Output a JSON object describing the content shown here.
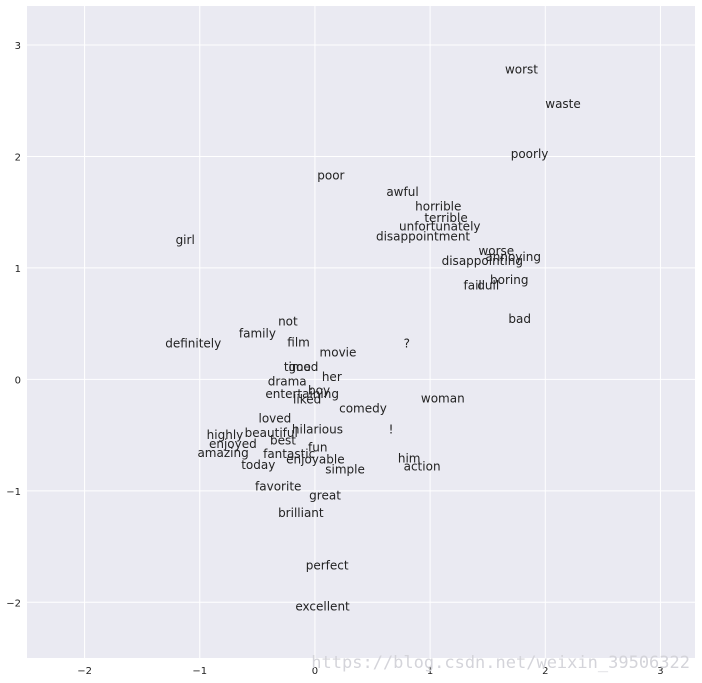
{
  "chart_data": {
    "type": "scatter",
    "title": "",
    "xlabel": "",
    "ylabel": "",
    "xlim": [
      -2.5,
      3.3
    ],
    "ylim": [
      -2.5,
      3.35
    ],
    "grid": true,
    "xticks": [
      "−2",
      "−1",
      "0",
      "1",
      "2",
      "3"
    ],
    "xtick_values": [
      -2,
      -1,
      0,
      1,
      2,
      3
    ],
    "yticks": [
      "−2",
      "−1",
      "0",
      "1",
      "2",
      "3"
    ],
    "ytick_values": [
      -2,
      -1,
      0,
      1,
      2,
      3
    ],
    "points": [
      {
        "label": "worst",
        "x": 1.65,
        "y": 2.78
      },
      {
        "label": "waste",
        "x": 2.0,
        "y": 2.47
      },
      {
        "label": "poorly",
        "x": 1.7,
        "y": 2.02
      },
      {
        "label": "poor",
        "x": 0.02,
        "y": 1.83
      },
      {
        "label": "awful",
        "x": 0.62,
        "y": 1.68
      },
      {
        "label": "horrible",
        "x": 0.87,
        "y": 1.55
      },
      {
        "label": "terrible",
        "x": 0.95,
        "y": 1.45
      },
      {
        "label": "unfortunately",
        "x": 0.73,
        "y": 1.37
      },
      {
        "label": "disappointment",
        "x": 0.53,
        "y": 1.28
      },
      {
        "label": "girl",
        "x": -1.21,
        "y": 1.25
      },
      {
        "label": "worse",
        "x": 1.42,
        "y": 1.15
      },
      {
        "label": "annoying",
        "x": 1.48,
        "y": 1.1
      },
      {
        "label": "disappointing",
        "x": 1.1,
        "y": 1.06
      },
      {
        "label": "boring",
        "x": 1.52,
        "y": 0.89
      },
      {
        "label": "fail",
        "x": 1.29,
        "y": 0.84
      },
      {
        "label": "dull",
        "x": 1.41,
        "y": 0.84
      },
      {
        "label": "bad",
        "x": 1.68,
        "y": 0.54
      },
      {
        "label": "not",
        "x": -0.32,
        "y": 0.52
      },
      {
        "label": "family",
        "x": -0.66,
        "y": 0.41
      },
      {
        "label": "definitely",
        "x": -1.3,
        "y": 0.32
      },
      {
        "label": "film",
        "x": -0.24,
        "y": 0.33
      },
      {
        "label": "?",
        "x": 0.77,
        "y": 0.32
      },
      {
        "label": "movie",
        "x": 0.04,
        "y": 0.24
      },
      {
        "label": "time",
        "x": -0.27,
        "y": 0.11
      },
      {
        "label": "good",
        "x": -0.23,
        "y": 0.11
      },
      {
        "label": "her",
        "x": 0.06,
        "y": 0.02
      },
      {
        "label": "drama",
        "x": -0.41,
        "y": -0.02
      },
      {
        "label": "boy",
        "x": -0.06,
        "y": -0.1
      },
      {
        "label": "entertaining",
        "x": -0.43,
        "y": -0.13
      },
      {
        "label": "liked",
        "x": -0.19,
        "y": -0.18
      },
      {
        "label": "comedy",
        "x": 0.21,
        "y": -0.26
      },
      {
        "label": "woman",
        "x": 0.92,
        "y": -0.17
      },
      {
        "label": "loved",
        "x": -0.49,
        "y": -0.35
      },
      {
        "label": "hilarious",
        "x": -0.2,
        "y": -0.45
      },
      {
        "label": "!",
        "x": 0.64,
        "y": -0.45
      },
      {
        "label": "highly",
        "x": -0.94,
        "y": -0.5
      },
      {
        "label": "beautiful",
        "x": -0.61,
        "y": -0.48
      },
      {
        "label": "best",
        "x": -0.39,
        "y": -0.55
      },
      {
        "label": "enjoyed",
        "x": -0.92,
        "y": -0.58
      },
      {
        "label": "fun",
        "x": -0.06,
        "y": -0.61
      },
      {
        "label": "amazing",
        "x": -1.02,
        "y": -0.66
      },
      {
        "label": "fantastic",
        "x": -0.45,
        "y": -0.67
      },
      {
        "label": "enjoyable",
        "x": -0.25,
        "y": -0.72
      },
      {
        "label": "him",
        "x": 0.72,
        "y": -0.71
      },
      {
        "label": "today",
        "x": -0.64,
        "y": -0.77
      },
      {
        "label": "action",
        "x": 0.77,
        "y": -0.78
      },
      {
        "label": "simple",
        "x": 0.09,
        "y": -0.81
      },
      {
        "label": "favorite",
        "x": -0.52,
        "y": -0.96
      },
      {
        "label": "great",
        "x": -0.05,
        "y": -1.04
      },
      {
        "label": "brilliant",
        "x": -0.32,
        "y": -1.2
      },
      {
        "label": "perfect",
        "x": -0.08,
        "y": -1.67
      },
      {
        "label": "excellent",
        "x": -0.17,
        "y": -2.04
      }
    ]
  },
  "watermark": "https://blog.csdn.net/weixin_39506322",
  "colors": {
    "plot_bg": "#eaeaf2",
    "grid": "#ffffff",
    "text": "#222222"
  }
}
